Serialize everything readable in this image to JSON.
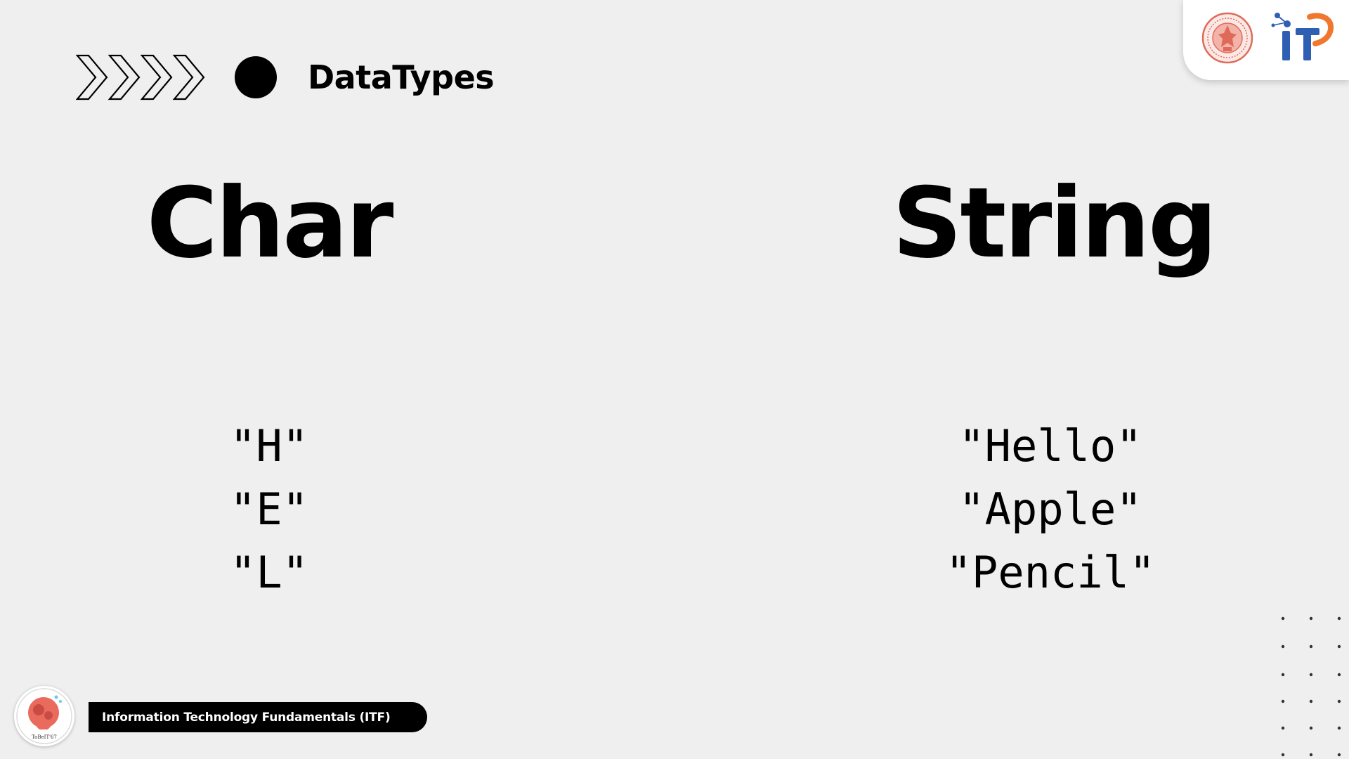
{
  "header": {
    "title": "DataTypes",
    "chevrons_icon": "chevron-arrows-icon",
    "bullet_icon": "circle-bullet-icon"
  },
  "logos": {
    "university_seal": "university-seal-logo",
    "it_logo": "it-faculty-logo",
    "seal_color": "#e06a5a",
    "it_blue": "#2f5fb3",
    "it_orange": "#f0782e"
  },
  "columns": {
    "left": {
      "heading": "Char",
      "examples": [
        "\"H\"",
        "\"E\"",
        "\"L\""
      ]
    },
    "right": {
      "heading": "String",
      "examples": [
        "\"Hello\"",
        "\"Apple\"",
        "\"Pencil\""
      ]
    }
  },
  "footer": {
    "course": "Information Technology Fundamentals (ITF)",
    "avatar_icon": "course-mascot-avatar",
    "avatar_caption": "ToBeIT'67"
  },
  "decor": {
    "dot_grid": "dot-grid-decoration"
  }
}
